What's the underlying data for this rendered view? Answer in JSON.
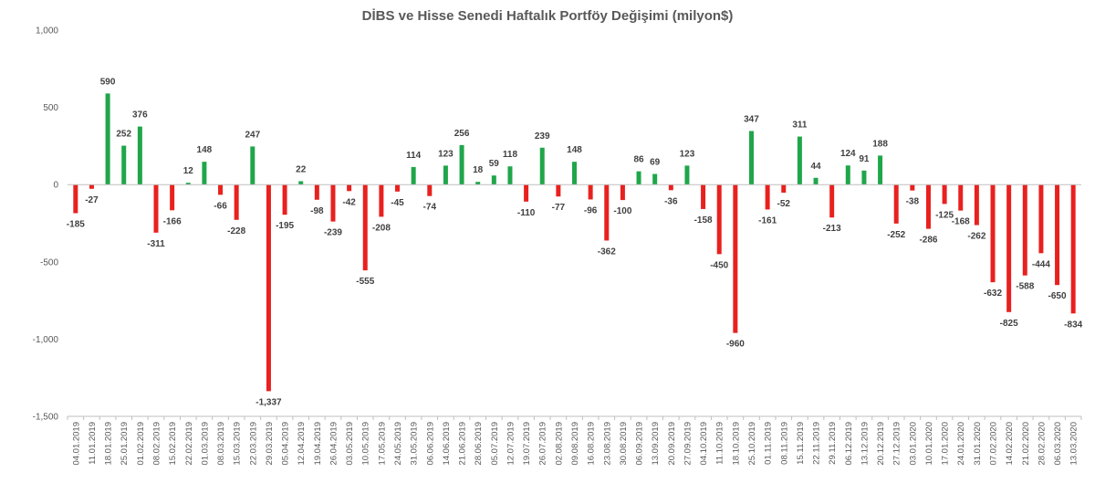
{
  "chart_data": {
    "type": "bar",
    "title": "DİBS ve Hisse Senedi Haftalık Portföy Değişimi (milyon$)",
    "xlabel": "",
    "ylabel": "",
    "ylim": [
      -1500,
      1000
    ],
    "yticks": [
      1000,
      500,
      0,
      -500,
      -1000,
      -1500
    ],
    "ytick_labels": [
      "1,000",
      "500",
      "0",
      "-500",
      "-1,000",
      "-1,500"
    ],
    "grid": false,
    "legend": "none",
    "colors": {
      "positive": "#1fa64a",
      "negative": "#e8211f",
      "axis": "#bfbfbf"
    },
    "categories": [
      "04.01.2019",
      "11.01.2019",
      "18.01.2019",
      "25.01.2019",
      "01.02.2019",
      "08.02.2019",
      "15.02.2019",
      "22.02.2019",
      "01.03.2019",
      "08.03.2019",
      "15.03.2019",
      "22.03.2019",
      "29.03.2019",
      "05.04.2019",
      "12.04.2019",
      "19.04.2019",
      "26.04.2019",
      "03.05.2019",
      "10.05.2019",
      "17.05.2019",
      "24.05.2019",
      "31.05.2019",
      "06.06.2019",
      "14.06.2019",
      "21.06.2019",
      "28.06.2019",
      "05.07.2019",
      "12.07.2019",
      "19.07.2019",
      "26.07.2019",
      "02.08.2019",
      "09.08.2019",
      "16.08.2019",
      "23.08.2019",
      "30.08.2019",
      "06.09.2019",
      "13.09.2019",
      "20.09.2019",
      "27.09.2019",
      "04.10.2019",
      "11.10.2019",
      "18.10.2019",
      "25.10.2019",
      "01.11.2019",
      "08.11.2019",
      "15.11.2019",
      "22.11.2019",
      "29.11.2019",
      "06.12.2019",
      "13.12.2019",
      "20.12.2019",
      "27.12.2019",
      "03.01.2020",
      "10.01.2020",
      "17.01.2020",
      "24.01.2020",
      "31.01.2020",
      "07.02.2020",
      "14.02.2020",
      "21.02.2020",
      "28.02.2020",
      "06.03.2020",
      "13.03.2020"
    ],
    "values": [
      -185,
      -27,
      590,
      252,
      376,
      -311,
      -166,
      12,
      148,
      -66,
      -228,
      247,
      -1337,
      -195,
      22,
      -98,
      -239,
      -42,
      -555,
      -208,
      -45,
      114,
      -74,
      123,
      256,
      18,
      59,
      118,
      -110,
      239,
      -77,
      148,
      -96,
      -362,
      -100,
      86,
      69,
      -36,
      123,
      -158,
      -450,
      -960,
      347,
      -161,
      -52,
      311,
      44,
      -213,
      124,
      91,
      188,
      -252,
      -38,
      -286,
      -125,
      -168,
      -262,
      -632,
      -825,
      -588,
      -444,
      -650,
      -834
    ],
    "value_labels": [
      "-185",
      "-27",
      "590",
      "252",
      "376",
      "-311",
      "-166",
      "12",
      "148",
      "-66",
      "-228",
      "247",
      "-1,337",
      "-195",
      "22",
      "-98",
      "-239",
      "-42",
      "-555",
      "-208",
      "-45",
      "114",
      "-74",
      "123",
      "256",
      "18",
      "59",
      "118",
      "-110",
      "239",
      "-77",
      "148",
      "-96",
      "-362",
      "-100",
      "86",
      "69",
      "-36",
      "123",
      "-158",
      "-450",
      "-960",
      "347",
      "-161",
      "-52",
      "311",
      "44",
      "-213",
      "124",
      "91",
      "188",
      "-252",
      "-38",
      "-286",
      "-125",
      "-168",
      "-262",
      "-632",
      "-825",
      "-588",
      "-444",
      "-650",
      "-834"
    ]
  }
}
